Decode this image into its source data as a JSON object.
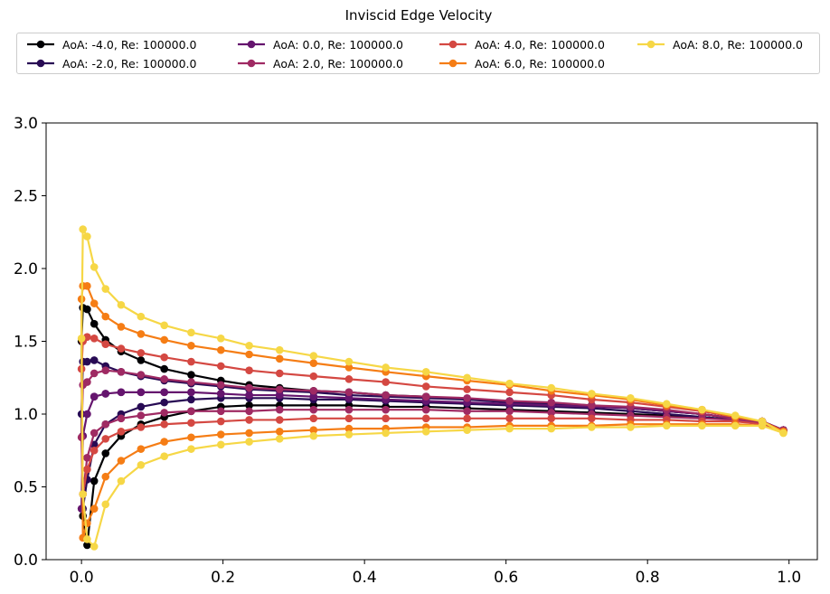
{
  "chart_data": {
    "type": "line",
    "title": "Inviscid Edge Velocity",
    "xlabel": "",
    "ylabel": "",
    "xlim": [
      -0.05,
      1.04
    ],
    "ylim": [
      0,
      3.0
    ],
    "xticks": [
      "0.0",
      "0.2",
      "0.4",
      "0.6",
      "0.8",
      "1.0"
    ],
    "yticks": [
      "0.0",
      "0.5",
      "1.0",
      "1.5",
      "2.0",
      "2.5",
      "3.0"
    ],
    "grid": false,
    "legend_position": "top",
    "x": [
      0.0,
      0.002,
      0.008,
      0.018,
      0.034,
      0.056,
      0.084,
      0.117,
      0.155,
      0.197,
      0.237,
      0.28,
      0.328,
      0.378,
      0.43,
      0.487,
      0.545,
      0.605,
      0.664,
      0.721,
      0.776,
      0.827,
      0.877,
      0.924,
      0.962,
      0.992
    ],
    "series": [
      {
        "name": "AoA: -4.0, Re: 100000.0",
        "color": "#000004",
        "upper": [
          1.5,
          1.73,
          1.72,
          1.62,
          1.51,
          1.43,
          1.37,
          1.31,
          1.27,
          1.23,
          1.2,
          1.18,
          1.16,
          1.15,
          1.13,
          1.12,
          1.1,
          1.09,
          1.07,
          1.06,
          1.04,
          1.02,
          1.0,
          0.97,
          0.95,
          0.89
        ],
        "lower": [
          0.6,
          0.3,
          0.1,
          0.54,
          0.73,
          0.85,
          0.93,
          0.98,
          1.02,
          1.05,
          1.06,
          1.06,
          1.06,
          1.06,
          1.05,
          1.05,
          1.04,
          1.03,
          1.02,
          1.01,
          1.0,
          0.99,
          0.98,
          0.96,
          0.94,
          0.89
        ]
      },
      {
        "name": "AoA: -2.0, Re: 100000.0",
        "color": "#280b54",
        "upper": [
          1.0,
          1.36,
          1.36,
          1.37,
          1.33,
          1.29,
          1.26,
          1.23,
          1.21,
          1.19,
          1.17,
          1.16,
          1.15,
          1.13,
          1.12,
          1.11,
          1.1,
          1.08,
          1.07,
          1.06,
          1.04,
          1.02,
          1.0,
          0.97,
          0.95,
          0.89
        ],
        "lower": [
          0.13,
          0.35,
          0.55,
          0.79,
          0.93,
          1.0,
          1.05,
          1.08,
          1.1,
          1.11,
          1.11,
          1.11,
          1.1,
          1.1,
          1.09,
          1.08,
          1.07,
          1.06,
          1.05,
          1.04,
          1.02,
          1.0,
          0.98,
          0.96,
          0.94,
          0.89
        ]
      },
      {
        "name": "AoA: 0.0, Re: 100000.0",
        "color": "#65156e",
        "upper": [
          0.35,
          0.85,
          1.0,
          1.12,
          1.14,
          1.15,
          1.15,
          1.15,
          1.15,
          1.14,
          1.13,
          1.13,
          1.12,
          1.11,
          1.1,
          1.09,
          1.08,
          1.07,
          1.06,
          1.05,
          1.04,
          1.02,
          1.0,
          0.97,
          0.95,
          0.89
        ],
        "lower": [
          0.35,
          0.85,
          1.0,
          1.12,
          1.14,
          1.15,
          1.15,
          1.15,
          1.15,
          1.14,
          1.13,
          1.13,
          1.12,
          1.11,
          1.1,
          1.09,
          1.08,
          1.07,
          1.06,
          1.05,
          1.04,
          1.02,
          1.0,
          0.97,
          0.95,
          0.89
        ]
      },
      {
        "name": "AoA: 2.0, Re: 100000.0",
        "color": "#9f2a63",
        "upper": [
          0.84,
          1.2,
          1.22,
          1.28,
          1.3,
          1.29,
          1.27,
          1.24,
          1.22,
          1.2,
          1.18,
          1.17,
          1.16,
          1.15,
          1.13,
          1.12,
          1.11,
          1.09,
          1.08,
          1.06,
          1.05,
          1.03,
          1.0,
          0.97,
          0.95,
          0.89
        ],
        "lower": [
          0.02,
          0.45,
          0.7,
          0.87,
          0.93,
          0.97,
          0.99,
          1.01,
          1.02,
          1.02,
          1.02,
          1.03,
          1.03,
          1.03,
          1.03,
          1.03,
          1.02,
          1.02,
          1.01,
          1.0,
          0.99,
          0.98,
          0.97,
          0.96,
          0.94,
          0.89
        ]
      },
      {
        "name": "AoA: 4.0, Re: 100000.0",
        "color": "#d44842",
        "upper": [
          1.31,
          1.5,
          1.53,
          1.52,
          1.48,
          1.45,
          1.42,
          1.39,
          1.36,
          1.33,
          1.3,
          1.28,
          1.26,
          1.24,
          1.22,
          1.19,
          1.17,
          1.15,
          1.13,
          1.1,
          1.08,
          1.05,
          1.02,
          0.98,
          0.95,
          0.88
        ],
        "lower": [
          0.25,
          0.45,
          0.62,
          0.75,
          0.83,
          0.88,
          0.91,
          0.93,
          0.94,
          0.95,
          0.96,
          0.96,
          0.97,
          0.97,
          0.97,
          0.97,
          0.97,
          0.97,
          0.97,
          0.97,
          0.96,
          0.96,
          0.95,
          0.95,
          0.93,
          0.88
        ]
      },
      {
        "name": "AoA: 6.0, Re: 100000.0",
        "color": "#f57d15",
        "upper": [
          1.79,
          1.88,
          1.88,
          1.76,
          1.67,
          1.6,
          1.55,
          1.51,
          1.47,
          1.44,
          1.41,
          1.38,
          1.35,
          1.32,
          1.29,
          1.26,
          1.23,
          1.2,
          1.16,
          1.13,
          1.1,
          1.06,
          1.03,
          0.98,
          0.95,
          0.88
        ],
        "lower": [
          0.05,
          0.15,
          0.25,
          0.35,
          0.57,
          0.68,
          0.76,
          0.81,
          0.84,
          0.86,
          0.87,
          0.88,
          0.89,
          0.9,
          0.9,
          0.91,
          0.91,
          0.92,
          0.92,
          0.92,
          0.93,
          0.93,
          0.93,
          0.93,
          0.92,
          0.88
        ]
      },
      {
        "name": "AoA: 8.0, Re: 100000.0",
        "color": "#f6d746",
        "upper": [
          1.52,
          2.27,
          2.22,
          2.01,
          1.86,
          1.75,
          1.67,
          1.61,
          1.56,
          1.52,
          1.47,
          1.44,
          1.4,
          1.36,
          1.32,
          1.29,
          1.25,
          1.21,
          1.18,
          1.14,
          1.11,
          1.07,
          1.03,
          0.99,
          0.95,
          0.87
        ],
        "lower": [
          0.2,
          0.45,
          0.14,
          0.09,
          0.38,
          0.54,
          0.65,
          0.71,
          0.76,
          0.79,
          0.81,
          0.83,
          0.85,
          0.86,
          0.87,
          0.88,
          0.89,
          0.9,
          0.9,
          0.91,
          0.91,
          0.92,
          0.92,
          0.92,
          0.92,
          0.87
        ]
      }
    ]
  }
}
